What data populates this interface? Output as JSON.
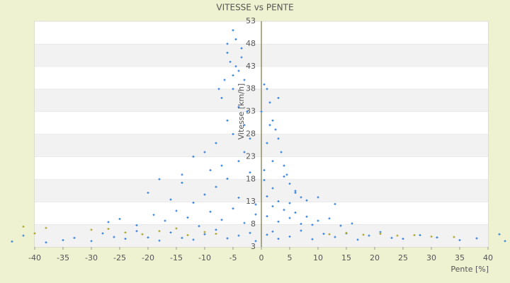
{
  "chart_data": {
    "type": "scatter",
    "title": "VITESSE vs PENTE",
    "x_label": "Pente [%]",
    "y_label": "Vitesse [km/h]",
    "xlim": [
      -40,
      40
    ],
    "ylim": [
      3,
      53
    ],
    "xticks": [
      -40,
      -35,
      -30,
      -25,
      -20,
      -15,
      -10,
      -5,
      0,
      5,
      10,
      15,
      20,
      25,
      30,
      35,
      40
    ],
    "yticks": [
      3,
      8,
      13,
      18,
      23,
      28,
      33,
      38,
      43,
      48,
      53
    ],
    "grid": true,
    "series": [
      {
        "color": "#2f7fd6",
        "x": [
          -44,
          -42,
          -38,
          -35,
          -33,
          -30,
          -28,
          -26,
          -24,
          -22,
          -20,
          -18,
          -16,
          -14,
          -12,
          -10,
          -8,
          -6,
          -4,
          -2,
          -1,
          1,
          2,
          3,
          5,
          7,
          9,
          11,
          13,
          15,
          17,
          19,
          21,
          23,
          25,
          28,
          31,
          35,
          38,
          42,
          43,
          -27,
          -25,
          -22,
          -19,
          -17,
          -15,
          -13,
          -11,
          -9,
          -7,
          -5,
          -3,
          -1,
          1,
          2,
          3,
          4,
          5,
          6,
          7,
          8,
          9,
          10,
          12,
          14,
          16,
          -20,
          -16,
          -14,
          -12,
          -10,
          -8,
          -6,
          -4,
          -2,
          -1,
          0.5,
          1,
          2,
          3,
          4,
          5,
          6,
          8,
          10,
          13,
          -6,
          -5,
          -4.5,
          -5.5,
          -4,
          -3.5,
          -6.5,
          -7,
          -5,
          -4,
          -3,
          -6,
          -5,
          -8,
          -3,
          -4,
          -7,
          -2,
          -3,
          -4.5,
          -6,
          -3.5,
          -5,
          -7.5,
          -2.5,
          0.5,
          1,
          1.5,
          0,
          2,
          2.5,
          3,
          1,
          3.5,
          2,
          4,
          0.5,
          4.5,
          5,
          1.5,
          3,
          6,
          7,
          -12,
          -10,
          -14,
          -18,
          -9
        ],
        "values": [
          4.2,
          5.5,
          4.0,
          4.5,
          5.0,
          4.3,
          6.0,
          5.2,
          4.8,
          6.5,
          5.1,
          4.4,
          6.2,
          5.0,
          4.6,
          5.8,
          6.8,
          4.9,
          5.5,
          6.1,
          4.3,
          5.7,
          6.4,
          4.8,
          5.3,
          6.6,
          4.7,
          5.9,
          5.2,
          6.0,
          4.6,
          5.5,
          6.3,
          5.0,
          4.8,
          5.6,
          5.1,
          4.5,
          4.9,
          5.8,
          4.3,
          8.5,
          9.2,
          7.8,
          10.1,
          8.8,
          11.0,
          9.5,
          7.6,
          10.8,
          9.0,
          11.5,
          8.3,
          10.2,
          9.8,
          12.0,
          8.6,
          11.2,
          9.4,
          10.6,
          8.1,
          9.7,
          7.9,
          8.8,
          9.3,
          7.7,
          8.2,
          15.0,
          13.5,
          17.2,
          12.8,
          14.6,
          16.3,
          18.1,
          13.9,
          19.5,
          12.4,
          17.8,
          14.2,
          16.0,
          13.1,
          18.6,
          12.7,
          15.4,
          13.3,
          14.0,
          12.5,
          46,
          51,
          49,
          44,
          42,
          47,
          40,
          36,
          38,
          34,
          30,
          31,
          28,
          26,
          24,
          22,
          21,
          27,
          40,
          43,
          48,
          45,
          41,
          38,
          33,
          39,
          38,
          35,
          33,
          31,
          29,
          27,
          26,
          24,
          22,
          21,
          20,
          19,
          17,
          30,
          36,
          15,
          14,
          23,
          24,
          19,
          18,
          20
        ]
      },
      {
        "color": "#a6a21c",
        "x": [
          -42,
          -40,
          -38,
          -30,
          -27,
          -24,
          -21,
          -18,
          -15,
          -13,
          -10,
          -8,
          12,
          15,
          18,
          21,
          24,
          27,
          30,
          34
        ],
        "values": [
          7.5,
          6.0,
          7.2,
          6.8,
          7.0,
          6.2,
          5.8,
          6.5,
          7.1,
          5.6,
          6.3,
          5.9,
          5.8,
          6.1,
          5.7,
          5.9,
          5.5,
          5.6,
          5.3,
          5.2
        ]
      }
    ]
  }
}
